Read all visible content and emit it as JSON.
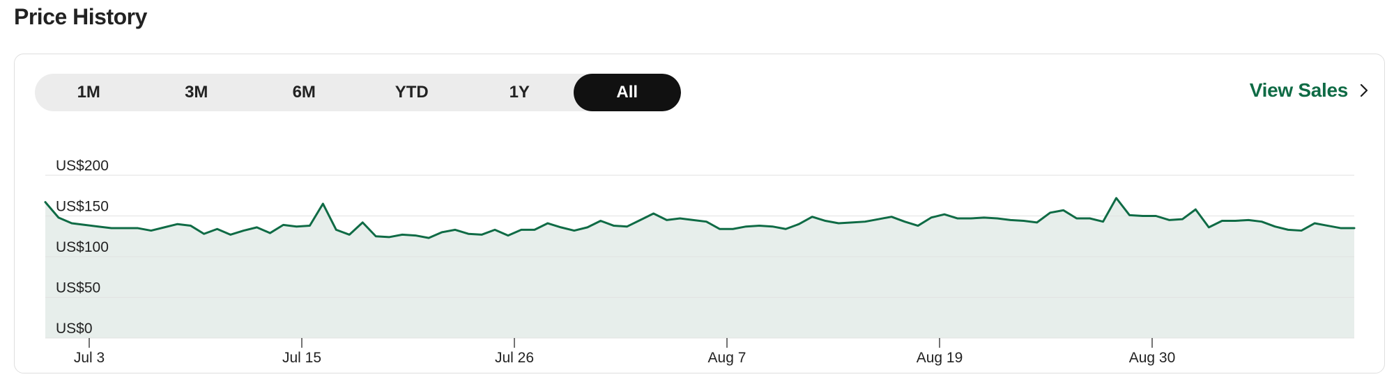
{
  "page": {
    "title": "Price History"
  },
  "range_selector": {
    "options": [
      "1M",
      "3M",
      "6M",
      "YTD",
      "1Y",
      "All"
    ],
    "selected": "All"
  },
  "view_sales": {
    "label": "View Sales",
    "icon": "chevron-right-icon"
  },
  "colors": {
    "accent": "#0f6b45",
    "area_fill": "#e7eeeb",
    "active_bg": "#111111",
    "pill_bg": "#ececec"
  },
  "chart_data": {
    "type": "area",
    "title": "",
    "xlabel": "",
    "ylabel": "",
    "ylim": [
      0,
      200
    ],
    "y_ticks": [
      {
        "value": 0,
        "label": "US$0"
      },
      {
        "value": 50,
        "label": "US$50"
      },
      {
        "value": 100,
        "label": "US$100"
      },
      {
        "value": 150,
        "label": "US$150"
      },
      {
        "value": 200,
        "label": "US$200"
      }
    ],
    "x_ticks": [
      "Jul 3",
      "Jul 15",
      "Jul 26",
      "Aug 7",
      "Aug 19",
      "Aug 30"
    ],
    "grid": true,
    "series": [
      {
        "values": [
          167,
          148,
          141,
          139,
          137,
          135,
          135,
          135,
          132,
          136,
          140,
          138,
          128,
          134,
          127,
          132,
          136,
          129,
          139,
          137,
          138,
          165,
          133,
          127,
          142,
          125,
          124,
          127,
          126,
          123,
          130,
          133,
          128,
          127,
          133,
          126,
          133,
          133,
          141,
          136,
          132,
          136,
          144,
          138,
          137,
          145,
          153,
          145,
          147,
          145,
          143,
          134,
          134,
          137,
          138,
          137,
          134,
          140,
          149,
          144,
          141,
          142,
          143,
          146,
          149,
          143,
          138,
          148,
          152,
          147,
          147,
          148,
          147,
          145,
          144,
          142,
          154,
          157,
          147,
          147,
          143,
          172,
          151,
          150,
          150,
          145,
          146,
          158,
          136,
          144,
          144,
          145,
          143,
          137,
          133,
          132,
          141,
          138,
          135,
          135
        ]
      }
    ]
  }
}
